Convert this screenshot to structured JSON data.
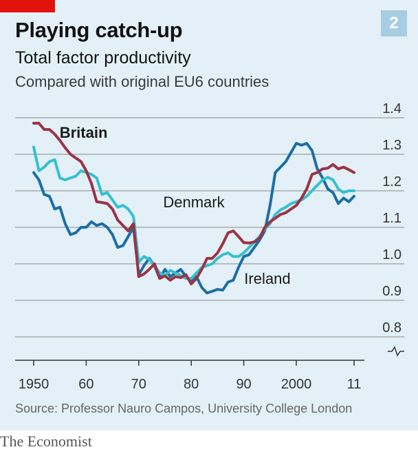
{
  "header": {
    "badge": "2",
    "title": "Playing catch-up",
    "subtitle": "Total factor productivity",
    "subtitle2": "Compared with original EU6 countries"
  },
  "footer": {
    "source": "Source: Professor Nauro Campos, University College London",
    "brand": "The Economist"
  },
  "colors": {
    "accent_red": "#e3120b",
    "background": "#e3f0f7",
    "badge": "#a7cde2",
    "britain": "#9b3345",
    "denmark": "#36c0cf",
    "ireland": "#1c6ea4",
    "grid": "#8a8a8a"
  },
  "chart_data": {
    "type": "line",
    "title": "Playing catch-up",
    "subtitle": "Total factor productivity",
    "ylabel": "Compared with original EU6 countries",
    "ylim": [
      0.8,
      1.4
    ],
    "yticks": [
      0.8,
      0.9,
      1.0,
      1.1,
      1.2,
      1.3,
      1.4
    ],
    "ytick_labels": [
      "0.8",
      "0.9",
      "1.0",
      "1.1",
      "1.2",
      "1.3",
      "1.4"
    ],
    "xlim": [
      1950,
      2011
    ],
    "xticks": [
      1950,
      1960,
      1970,
      1980,
      1990,
      2000,
      2011
    ],
    "xtick_labels": [
      "1950",
      "60",
      "70",
      "80",
      "90",
      "2000",
      "11"
    ],
    "axis_break": true,
    "grid": true,
    "series": [
      {
        "name": "Britain",
        "color": "#9b3345",
        "x": [
          1950,
          1951,
          1952,
          1953,
          1954,
          1955,
          1956,
          1957,
          1958,
          1959,
          1960,
          1961,
          1962,
          1963,
          1964,
          1965,
          1966,
          1967,
          1968,
          1969,
          1970,
          1971,
          1972,
          1973,
          1974,
          1975,
          1976,
          1977,
          1978,
          1979,
          1980,
          1981,
          1982,
          1983,
          1984,
          1985,
          1986,
          1987,
          1988,
          1989,
          1990,
          1991,
          1992,
          1993,
          1994,
          1995,
          1996,
          1997,
          1998,
          1999,
          2000,
          2001,
          2002,
          2003,
          2004,
          2005,
          2006,
          2007,
          2008,
          2009,
          2010,
          2011
        ],
        "values": [
          1.385,
          1.385,
          1.368,
          1.368,
          1.355,
          1.338,
          1.318,
          1.3,
          1.29,
          1.28,
          1.255,
          1.22,
          1.17,
          1.168,
          1.165,
          1.15,
          1.12,
          1.105,
          1.09,
          1.11,
          0.965,
          0.972,
          0.985,
          1.0,
          0.96,
          0.967,
          0.955,
          0.965,
          0.962,
          0.97,
          0.945,
          0.96,
          0.985,
          1.015,
          1.015,
          1.03,
          1.055,
          1.085,
          1.09,
          1.075,
          1.058,
          1.057,
          1.06,
          1.07,
          1.1,
          1.115,
          1.125,
          1.135,
          1.14,
          1.15,
          1.16,
          1.18,
          1.205,
          1.245,
          1.25,
          1.26,
          1.262,
          1.272,
          1.26,
          1.265,
          1.258,
          1.25
        ]
      },
      {
        "name": "Denmark",
        "color": "#36c0cf",
        "x": [
          1950,
          1951,
          1952,
          1953,
          1954,
          1955,
          1956,
          1957,
          1958,
          1959,
          1960,
          1961,
          1962,
          1963,
          1964,
          1965,
          1966,
          1967,
          1968,
          1969,
          1970,
          1971,
          1972,
          1973,
          1974,
          1975,
          1976,
          1977,
          1978,
          1979,
          1980,
          1981,
          1982,
          1983,
          1984,
          1985,
          1986,
          1987,
          1988,
          1989,
          1990,
          1991,
          1992,
          1993,
          1994,
          1995,
          1996,
          1997,
          1998,
          1999,
          2000,
          2001,
          2002,
          2003,
          2004,
          2005,
          2006,
          2007,
          2008,
          2009,
          2010,
          2011
        ],
        "values": [
          1.32,
          1.255,
          1.265,
          1.28,
          1.285,
          1.235,
          1.23,
          1.235,
          1.24,
          1.255,
          1.25,
          1.245,
          1.235,
          1.19,
          1.195,
          1.175,
          1.155,
          1.16,
          1.15,
          1.13,
          1.005,
          1.02,
          1.012,
          0.995,
          0.975,
          0.968,
          0.982,
          0.975,
          0.968,
          0.96,
          0.96,
          0.975,
          0.99,
          0.995,
          1.0,
          1.015,
          1.025,
          1.03,
          1.02,
          1.02,
          1.03,
          1.045,
          1.06,
          1.075,
          1.095,
          1.11,
          1.135,
          1.148,
          1.155,
          1.165,
          1.17,
          1.175,
          1.185,
          1.2,
          1.215,
          1.23,
          1.237,
          1.23,
          1.205,
          1.195,
          1.2,
          1.2
        ]
      },
      {
        "name": "Ireland",
        "color": "#1c6ea4",
        "x": [
          1950,
          1951,
          1952,
          1953,
          1954,
          1955,
          1956,
          1957,
          1958,
          1959,
          1960,
          1961,
          1962,
          1963,
          1964,
          1965,
          1966,
          1967,
          1968,
          1969,
          1970,
          1971,
          1972,
          1973,
          1974,
          1975,
          1976,
          1977,
          1978,
          1979,
          1980,
          1981,
          1982,
          1983,
          1984,
          1985,
          1986,
          1987,
          1988,
          1989,
          1990,
          1991,
          1992,
          1993,
          1994,
          1995,
          1996,
          1997,
          1998,
          1999,
          2000,
          2001,
          2002,
          2003,
          2004,
          2005,
          2006,
          2007,
          2008,
          2009,
          2010,
          2011
        ],
        "values": [
          1.25,
          1.23,
          1.19,
          1.185,
          1.15,
          1.155,
          1.11,
          1.08,
          1.085,
          1.1,
          1.1,
          1.115,
          1.105,
          1.11,
          1.1,
          1.08,
          1.045,
          1.05,
          1.075,
          1.1,
          0.97,
          0.995,
          1.015,
          0.995,
          0.96,
          0.985,
          0.965,
          0.975,
          0.985,
          0.965,
          0.95,
          0.965,
          0.935,
          0.92,
          0.925,
          0.93,
          0.928,
          0.95,
          0.955,
          0.99,
          1.02,
          1.025,
          1.045,
          1.065,
          1.09,
          1.16,
          1.25,
          1.265,
          1.28,
          1.305,
          1.33,
          1.325,
          1.33,
          1.31,
          1.26,
          1.235,
          1.205,
          1.195,
          1.165,
          1.18,
          1.17,
          1.185
        ]
      }
    ],
    "annotations": [
      {
        "text": "Britain",
        "series": "Britain",
        "bold": true,
        "x": 1959.5,
        "y": 1.345
      },
      {
        "text": "Denmark",
        "series": "Denmark",
        "bold": false,
        "x": 1980.5,
        "y": 1.155
      },
      {
        "text": "Ireland",
        "series": "Ireland",
        "bold": false,
        "x": 1994.5,
        "y": 0.945
      }
    ]
  }
}
